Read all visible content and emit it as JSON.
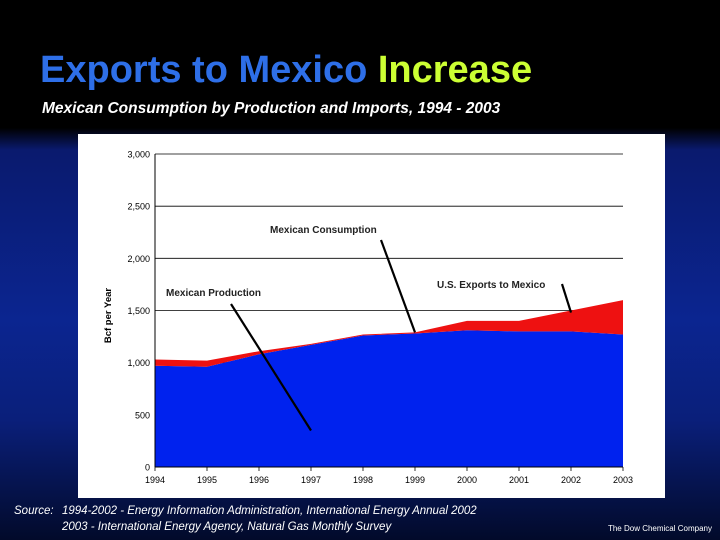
{
  "slide": {
    "title_part1": "Exports to Mexico",
    "title_part2": "Increase",
    "subtitle": "Mexican Consumption by Production and Imports, 1994 - 2003",
    "source_label": "Source:",
    "source_line1": "1994-2002 - Energy Information Administration, International Energy Annual 2002",
    "source_line2": "2003 - International Energy Agency, Natural Gas Monthly Survey",
    "company": "The Dow Chemical Company"
  },
  "colors": {
    "production": "#0022ee",
    "exports": "#ee1111",
    "title_blue": "#2e6fe8",
    "title_green": "#ccff33"
  },
  "chart_data": {
    "type": "area",
    "stacked": true,
    "x": [
      "1994",
      "1995",
      "1996",
      "1997",
      "1998",
      "1999",
      "2000",
      "2001",
      "2002",
      "2003"
    ],
    "series": [
      {
        "name": "Mexican Production",
        "values": [
          970,
          960,
          1080,
          1170,
          1260,
          1280,
          1310,
          1300,
          1300,
          1270
        ]
      },
      {
        "name": "U.S. Exports to Mexico",
        "values": [
          60,
          60,
          30,
          10,
          10,
          10,
          90,
          100,
          200,
          330
        ]
      }
    ],
    "ylabel": "Bcf per Year",
    "xlabel": "",
    "ylim": [
      0,
      3000
    ],
    "yticks": [
      0,
      500,
      1000,
      1500,
      2000,
      2500,
      3000
    ],
    "ytick_labels": [
      "0",
      "500",
      "1,000",
      "1,500",
      "2,000",
      "2,500",
      "3,000"
    ],
    "grid": true,
    "annotations": [
      {
        "text": "Mexican Consumption",
        "target_year": 1999,
        "target_value": 1290
      },
      {
        "text": "Mexican Production",
        "target_year": 1997,
        "target_value": 350
      },
      {
        "text": "U.S. Exports to Mexico",
        "target_year": 2002,
        "target_value": 1480
      }
    ]
  }
}
